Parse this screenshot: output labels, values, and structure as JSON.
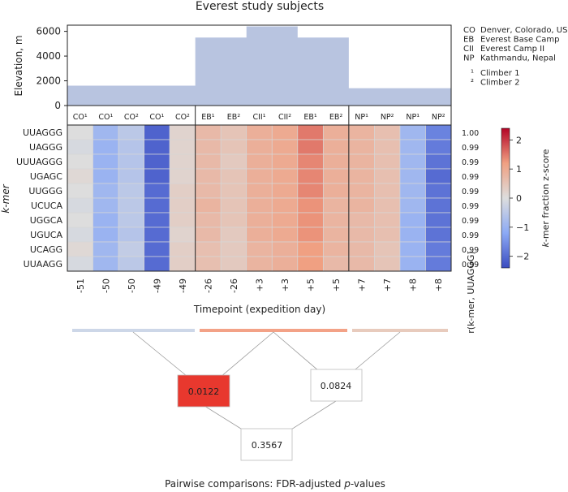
{
  "chart_data": [
    {
      "type": "area",
      "title": "Everest study subjects",
      "ylabel": "Elevation, m",
      "ylim": [
        0,
        6500
      ],
      "yticks": [
        "0",
        "2000",
        "4000",
        "6000"
      ],
      "values": [
        1609,
        1609,
        1609,
        1609,
        1609,
        5500,
        5500,
        6400,
        6400,
        5500,
        5500,
        1400,
        1400,
        1400,
        1400
      ],
      "legend": [
        {
          "code": "CO",
          "name": "Denver, Colorado, US"
        },
        {
          "code": "EB",
          "name": "Everest Base Camp"
        },
        {
          "code": "CII",
          "name": "Everest Camp II"
        },
        {
          "code": "NP",
          "name": "Kathmandu, Nepal"
        }
      ],
      "climber_legend": [
        {
          "mark": "¹",
          "name": "Climber 1"
        },
        {
          "mark": "²",
          "name": "Climber 2"
        }
      ],
      "colors": {
        "area": "#b8c4e0"
      }
    },
    {
      "type": "heatmap",
      "ylabel": "k-mer",
      "xlabel": "Timepoint (expedition day)",
      "columns": [
        "CO¹",
        "CO¹",
        "CO²",
        "CO¹",
        "CO²",
        "EB¹",
        "EB²",
        "CII¹",
        "CII²",
        "EB¹",
        "EB²",
        "NP¹",
        "NP²",
        "NP¹",
        "NP²"
      ],
      "timepoints": [
        "-51",
        "-50",
        "-50",
        "-49",
        "-49",
        "-26",
        "-26",
        "+3",
        "+3",
        "+5",
        "+5",
        "+7",
        "+7",
        "+8",
        "+8"
      ],
      "rows": [
        "UUAGGG",
        "UAGGG",
        "UUUAGGG",
        "UGAGC",
        "UUGGG",
        "UCUCA",
        "UGGCA",
        "UGUCA",
        "UCAGG",
        "UUAAGG"
      ],
      "correlation": [
        "1.00",
        "0.99",
        "0.99",
        "0.99",
        "0.99",
        "0.99",
        "0.99",
        "0.99",
        "0.99",
        "0.99"
      ],
      "correlation_label": "r(k-mer, UUAGGG)",
      "colorbar_label": "k-mer fraction z-score",
      "colorbar_ticks": [
        "2",
        "1",
        "0",
        "−1",
        "−2"
      ],
      "colorbar_range": [
        -2.4,
        2.4
      ],
      "groups": [
        {
          "start": 0,
          "end": 4
        },
        {
          "start": 5,
          "end": 10
        },
        {
          "start": 11,
          "end": 14
        }
      ],
      "values": [
        [
          0.0,
          -0.9,
          -0.5,
          -2.1,
          0.2,
          0.7,
          0.5,
          0.9,
          1.0,
          1.5,
          0.9,
          0.8,
          0.6,
          -0.9,
          -1.7
        ],
        [
          -0.1,
          -1.0,
          -0.6,
          -2.1,
          0.2,
          0.7,
          0.5,
          0.9,
          1.0,
          1.5,
          0.9,
          0.8,
          0.6,
          -0.9,
          -1.8
        ],
        [
          0.0,
          -1.0,
          -0.6,
          -2.1,
          0.2,
          0.7,
          0.4,
          0.9,
          1.0,
          1.4,
          0.9,
          0.8,
          0.6,
          -0.9,
          -1.9
        ],
        [
          0.1,
          -1.0,
          -0.6,
          -2.1,
          0.2,
          0.7,
          0.5,
          0.9,
          1.0,
          1.4,
          0.9,
          0.8,
          0.6,
          -0.9,
          -2.0
        ],
        [
          0.0,
          -0.9,
          -0.5,
          -2.0,
          0.3,
          0.7,
          0.5,
          0.9,
          1.0,
          1.4,
          0.9,
          0.8,
          0.6,
          -0.9,
          -1.9
        ],
        [
          -0.1,
          -0.9,
          -0.5,
          -2.0,
          0.3,
          0.8,
          0.5,
          0.9,
          1.0,
          1.3,
          0.8,
          0.8,
          0.6,
          -0.9,
          -1.9
        ],
        [
          0.0,
          -1.0,
          -0.5,
          -2.0,
          0.3,
          0.7,
          0.5,
          0.9,
          1.0,
          1.3,
          0.8,
          0.7,
          0.6,
          -1.0,
          -1.9
        ],
        [
          -0.1,
          -1.0,
          -0.6,
          -2.0,
          0.2,
          0.7,
          0.4,
          0.9,
          1.0,
          1.3,
          0.8,
          0.7,
          0.6,
          -1.0,
          -1.9
        ],
        [
          0.1,
          -0.9,
          -0.4,
          -2.0,
          0.3,
          0.6,
          0.4,
          0.8,
          0.9,
          1.2,
          0.8,
          0.7,
          0.5,
          -1.0,
          -1.8
        ],
        [
          -0.1,
          -0.9,
          -0.5,
          -2.0,
          0.3,
          0.6,
          0.4,
          0.8,
          0.9,
          1.2,
          0.7,
          0.7,
          0.5,
          -1.0,
          -1.8
        ]
      ]
    },
    {
      "type": "diagram",
      "title": "Pairwise comparisons: FDR-adjusted p-values",
      "title_parts": {
        "before": "Pairwise comparisons: FDR-adjusted ",
        "italic": "p",
        "after": "-values"
      },
      "group_colors": [
        "#cdd7e8",
        "#f3a287",
        "#e8cbbd"
      ],
      "comparisons": [
        {
          "pair": "CO-EB",
          "p": "0.0122",
          "fill": "#e8382e"
        },
        {
          "pair": "EB-NP",
          "p": "0.0824",
          "fill": "#ffffff"
        },
        {
          "pair": "CO-NP",
          "p": "0.3567",
          "fill": "#ffffff"
        }
      ]
    }
  ]
}
